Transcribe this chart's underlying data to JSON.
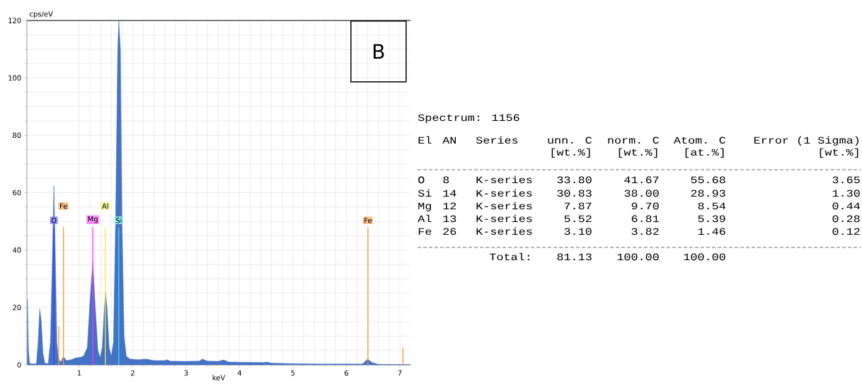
{
  "chart_data": [
    {
      "type": "area",
      "xlabel": "keV",
      "ylabel": "cps/eV",
      "xlim": [
        0.02,
        7.2
      ],
      "ylim": [
        0,
        120
      ],
      "xticks": [
        1,
        2,
        3,
        4,
        5,
        6,
        7
      ],
      "yticks": [
        0,
        20,
        40,
        60,
        80,
        100,
        120
      ],
      "grid": true,
      "annotations": [
        "B"
      ],
      "series": [
        {
          "type": "area",
          "color": "#4472c4",
          "x": [
            0.03,
            0.05,
            0.07,
            0.15,
            0.2,
            0.23,
            0.26,
            0.29,
            0.32,
            0.36,
            0.42,
            0.46,
            0.5,
            0.525,
            0.55,
            0.58,
            0.61,
            0.66,
            0.69,
            0.72,
            0.76,
            0.85,
            0.95,
            1.0,
            1.08,
            1.15,
            1.2,
            1.254,
            1.3,
            1.35,
            1.39,
            1.43,
            1.47,
            1.49,
            1.52,
            1.56,
            1.6,
            1.64,
            1.68,
            1.72,
            1.74,
            1.77,
            1.8,
            1.84,
            1.88,
            1.95,
            2.1,
            2.25,
            2.4,
            2.6,
            2.65,
            2.7,
            3.0,
            3.25,
            3.3,
            3.4,
            3.6,
            3.7,
            3.8,
            4.0,
            4.45,
            4.5,
            4.6,
            5.0,
            5.5,
            6.0,
            6.3,
            6.4,
            6.48,
            6.6,
            7.0,
            7.2
          ],
          "values": [
            23,
            5,
            0.5,
            0.3,
            0.5,
            8,
            19.5,
            15,
            4,
            0.5,
            0.5,
            8,
            40,
            62.5,
            40,
            8,
            2,
            1,
            2.5,
            2.5,
            1.5,
            1.8,
            2.5,
            2.5,
            3,
            6,
            22,
            36,
            20,
            5,
            2.5,
            6,
            20,
            25.5,
            20,
            6,
            3,
            8,
            50,
            110,
            120,
            110,
            50,
            10,
            3,
            2,
            1.8,
            2,
            1.5,
            1.5,
            1.8,
            1.3,
            1.2,
            1.3,
            2,
            1.3,
            1.2,
            1.7,
            1,
            0.9,
            0.8,
            1,
            0.6,
            0.4,
            0.3,
            0.3,
            0.3,
            2,
            0.8,
            0.2,
            0.1,
            0.1
          ]
        },
        {
          "type": "line",
          "name": "O",
          "color": "#3a3aff",
          "x": [
            0.525,
            0.525
          ],
          "values": [
            0,
            48
          ]
        },
        {
          "type": "line",
          "name": "Fe",
          "color": "#f5962e",
          "x": [
            0.615,
            0.615,
            null,
            0.705,
            0.705,
            null,
            6.404,
            6.404,
            null,
            7.058,
            7.058
          ],
          "values": [
            0,
            13.5,
            null,
            0,
            48,
            null,
            0,
            48,
            null,
            0,
            6
          ]
        },
        {
          "type": "line",
          "name": "Mg",
          "color": "#ff30ff",
          "x": [
            1.254,
            1.254
          ],
          "values": [
            0,
            48
          ]
        },
        {
          "type": "line",
          "name": "Al",
          "color": "#eeee44",
          "x": [
            1.487,
            1.487
          ],
          "values": [
            0,
            48
          ]
        },
        {
          "type": "line",
          "name": "Si",
          "color": "#30e0f0",
          "x": [
            1.74,
            1.74
          ],
          "values": [
            0,
            48
          ]
        }
      ]
    },
    {
      "type": "other",
      "title": "Spectrum:   1156",
      "annotations": [
        "El",
        "AN",
        "Series",
        "unn. C",
        "norm. C",
        "Atom. C",
        "Error (1 Sigma)",
        "[wt.%]",
        "[wt.%]",
        "[at.%]",
        "[wt.%]",
        "O",
        "8",
        "K-series",
        "33.80",
        "41.67",
        "55.68",
        "3.65",
        "Si",
        "14",
        "K-series",
        "30.83",
        "38.00",
        "28.93",
        "1.30",
        "Mg",
        "12",
        "K-series",
        "7.87",
        "9.70",
        "8.54",
        "0.44",
        "Al",
        "13",
        "K-series",
        "5.52",
        "6.81",
        "5.39",
        "0.28",
        "Fe",
        "26",
        "K-series",
        "3.10",
        "3.82",
        "1.46",
        "0.12",
        "Total:",
        "81.13",
        "100.00",
        "100.00"
      ]
    }
  ]
}
